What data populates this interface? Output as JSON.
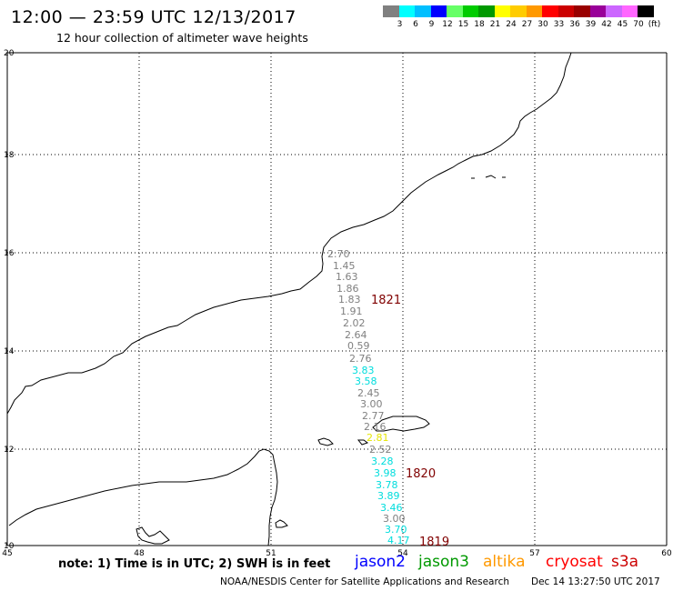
{
  "title": "12:00 — 23:59 UTC 12/13/2017",
  "subtitle": "12 hour collection of altimeter wave heights",
  "color_scale": {
    "labels": [
      "3",
      "6",
      "9",
      "12",
      "15",
      "18",
      "21",
      "24",
      "27",
      "30",
      "33",
      "36",
      "39",
      "42",
      "45",
      "70",
      "(ft)"
    ],
    "colors": [
      "#808080",
      "#00ffff",
      "#00bfff",
      "#0000ff",
      "#66ff66",
      "#00cc00",
      "#009900",
      "#ffff00",
      "#ffcc00",
      "#ff9900",
      "#ff0000",
      "#cc0000",
      "#990000",
      "#990099",
      "#cc66ff",
      "#ff66ff",
      "#000000"
    ]
  },
  "axes": {
    "lon_ticks": [
      "45",
      "48",
      "51",
      "54",
      "57",
      "60"
    ],
    "lat_ticks": [
      "20",
      "18",
      "16",
      "14",
      "12",
      "10"
    ]
  },
  "passes": [
    {
      "id": "1821",
      "color": "#800000"
    },
    {
      "id": "1820",
      "color": "#800000"
    },
    {
      "id": "1819",
      "color": "#800000"
    }
  ],
  "measurements": [
    {
      "value": "2.70",
      "color": "#808080"
    },
    {
      "value": "1.45",
      "color": "#808080"
    },
    {
      "value": "1.63",
      "color": "#808080"
    },
    {
      "value": "1.86",
      "color": "#808080"
    },
    {
      "value": "1.83",
      "color": "#808080"
    },
    {
      "value": "1.91",
      "color": "#808080"
    },
    {
      "value": "2.02",
      "color": "#808080"
    },
    {
      "value": "2.64",
      "color": "#808080"
    },
    {
      "value": "0.59",
      "color": "#808080"
    },
    {
      "value": "2.76",
      "color": "#808080"
    },
    {
      "value": "3.83",
      "color": "#00dddd"
    },
    {
      "value": "3.58",
      "color": "#00dddd"
    },
    {
      "value": "2.45",
      "color": "#808080"
    },
    {
      "value": "3.00",
      "color": "#808080"
    },
    {
      "value": "2.77",
      "color": "#808080"
    },
    {
      "value": "2.16",
      "color": "#808080"
    },
    {
      "value": "2.81",
      "color": "#e6e600"
    },
    {
      "value": "2.52",
      "color": "#808080"
    },
    {
      "value": "3.28",
      "color": "#00dddd"
    },
    {
      "value": "3.98",
      "color": "#00dddd"
    },
    {
      "value": "3.78",
      "color": "#00dddd"
    },
    {
      "value": "3.89",
      "color": "#00dddd"
    },
    {
      "value": "3.46",
      "color": "#00dddd"
    },
    {
      "value": "3.00",
      "color": "#808080"
    },
    {
      "value": "3.70",
      "color": "#00dddd"
    },
    {
      "value": "4.17",
      "color": "#00dddd"
    }
  ],
  "footer": {
    "note": "note: 1) Time is in UTC; 2) SWH is in feet",
    "satellites": [
      {
        "name": "jason2",
        "color": "#0000ff"
      },
      {
        "name": "jason3",
        "color": "#009900"
      },
      {
        "name": "altika",
        "color": "#ff9900"
      },
      {
        "name": "cryosat",
        "color": "#ff0000"
      },
      {
        "name": "s3a",
        "color": "#cc0000"
      }
    ],
    "credit": "NOAA/NESDIS Center for Satellite Applications and Research",
    "timestamp": "Dec 14 13:27:50 UTC 2017"
  }
}
